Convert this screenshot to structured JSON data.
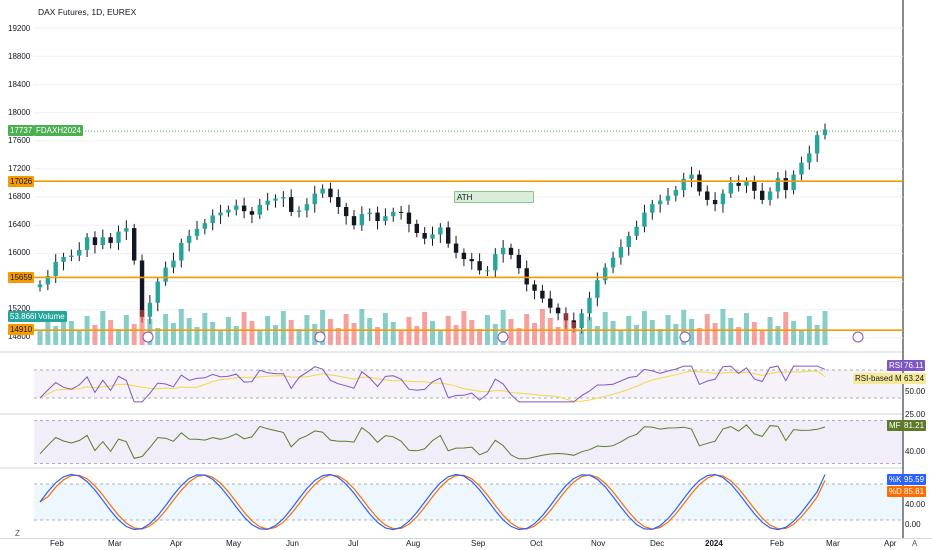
{
  "chart_title": "DAX Futures, 1D, EUREX",
  "price_axis": {
    "ticks": [
      "19200",
      "18800",
      "18400",
      "18000",
      "17600",
      "17200",
      "16800",
      "16400",
      "16000",
      "15200",
      "14800"
    ],
    "last_price": "17737",
    "last_price_symbol": "FDAXH2024",
    "volume_label": "53.866K",
    "volume_name": "Volume"
  },
  "levels": [
    {
      "label": "17026",
      "value": 17026
    },
    {
      "label": "15659",
      "value": 15659
    },
    {
      "label": "14910",
      "value": 14910
    }
  ],
  "annotation": {
    "text": "ATH"
  },
  "rsi": {
    "name": "RSI",
    "value": "76.11",
    "ma_name": "RSI-based MA",
    "ma_value": "63.24",
    "axis": [
      "50.00",
      "25.00"
    ]
  },
  "mfi": {
    "name": "MF",
    "value": "81.21",
    "axis": [
      "40.00"
    ]
  },
  "stoch": {
    "k_name": "%K",
    "k_value": "95.59",
    "d_name": "%D",
    "d_value": "85.81",
    "axis": [
      "40.00",
      "0.00"
    ]
  },
  "time_axis": [
    "Feb",
    "Mar",
    "Apr",
    "May",
    "Jun",
    "Jul",
    "Aug",
    "Sep",
    "Oct",
    "Nov",
    "Dec",
    "2024",
    "Feb",
    "Mar",
    "Apr"
  ],
  "corner_labels": {
    "tz": "Z",
    "auto": "A"
  },
  "colors": {
    "up": "#26a69a",
    "down": "#ef5350",
    "level": "#f59b00",
    "rsi": "#7e57c2",
    "rsi_ma": "#f5d742",
    "mfi": "#5d7a2a",
    "k": "#2962ff",
    "d": "#ff6d00",
    "last_price_bg": "#4caf50"
  },
  "chart_data": {
    "type": "candlestick",
    "price_range": [
      14700,
      19400
    ],
    "closes": [
      15560,
      15680,
      15880,
      15950,
      15970,
      16050,
      16230,
      16120,
      16230,
      16150,
      16310,
      16360,
      15900,
      15100,
      15300,
      15600,
      15800,
      15900,
      16150,
      16250,
      16350,
      16430,
      16540,
      16580,
      16620,
      16680,
      16600,
      16550,
      16690,
      16750,
      16780,
      16800,
      16590,
      16610,
      16700,
      16850,
      16920,
      16800,
      16660,
      16530,
      16400,
      16560,
      16580,
      16460,
      16530,
      16590,
      16580,
      16420,
      16290,
      16210,
      16270,
      16370,
      16140,
      16010,
      15920,
      15890,
      15760,
      15760,
      15990,
      16080,
      15980,
      15790,
      15560,
      15470,
      15360,
      15230,
      15150,
      15050,
      14940,
      15150,
      15370,
      15620,
      15800,
      15940,
      16090,
      16250,
      16380,
      16580,
      16700,
      16750,
      16820,
      16900,
      17060,
      17120,
      16880,
      16760,
      16700,
      16850,
      17000,
      16960,
      17020,
      16890,
      16760,
      16880,
      17070,
      16900,
      17120,
      17290,
      17420,
      17680,
      17760
    ],
    "levels": [
      17026,
      15659,
      14910
    ],
    "rsi_range": [
      0,
      100
    ],
    "rsi_ma_range": [
      0,
      100
    ],
    "mfi_range": [
      0,
      100
    ],
    "stoch_range": [
      0,
      100
    ],
    "last": {
      "price": 17737,
      "rsi": 76.11,
      "rsi_ma": 63.24,
      "mfi": 81.21,
      "k": 95.59,
      "d": 85.81
    }
  }
}
